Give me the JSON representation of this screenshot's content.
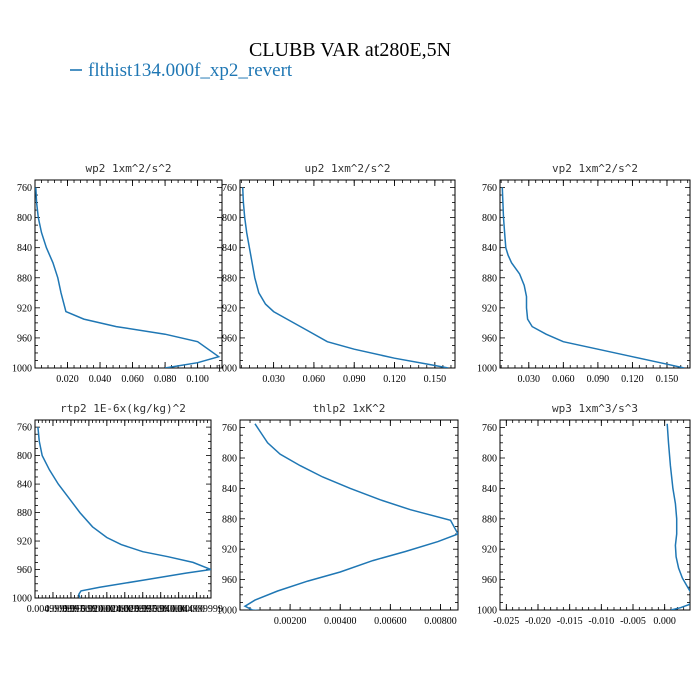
{
  "figure": {
    "title": "CLUBB VAR at280E,5N",
    "legend_label": "flthist134.000f_xp2_revert",
    "line_color": "#1f77b4"
  },
  "chart_data": [
    {
      "type": "line",
      "title": "wp2  1xm^2/s^2",
      "xlabel": "",
      "ylabel": "",
      "xlim": [
        0,
        0.115
      ],
      "ylim": [
        1000,
        750
      ],
      "xticks": [
        0.02,
        0.04,
        0.06,
        0.08,
        0.1
      ],
      "xtick_labels": [
        "0.020",
        "0.040",
        "0.060",
        "0.080",
        "0.100"
      ],
      "yticks": [
        760,
        800,
        840,
        880,
        920,
        960,
        1000
      ],
      "ytick_labels": [
        "760",
        "800",
        "840",
        "880",
        "920",
        "960",
        "1000"
      ],
      "series": [
        {
          "x": [
            0.0005,
            0.001,
            0.002,
            0.004,
            0.007,
            0.011,
            0.014,
            0.016,
            0.019,
            0.03,
            0.05,
            0.08,
            0.1,
            0.113,
            0.1,
            0.08
          ],
          "y": [
            760,
            780,
            800,
            820,
            840,
            860,
            880,
            900,
            925,
            935,
            945,
            955,
            965,
            985,
            993,
            1000
          ]
        }
      ]
    },
    {
      "type": "line",
      "title": "up2  1xm^2/s^2",
      "xlabel": "",
      "ylabel": "",
      "xlim": [
        0.005,
        0.165
      ],
      "ylim": [
        1000,
        750
      ],
      "xticks": [
        0.03,
        0.06,
        0.09,
        0.12,
        0.15
      ],
      "xtick_labels": [
        "0.030",
        "0.060",
        "0.090",
        "0.120",
        "0.150"
      ],
      "yticks": [
        760,
        800,
        840,
        880,
        920,
        960,
        1000
      ],
      "ytick_labels": [
        "760",
        "800",
        "840",
        "880",
        "920",
        "960",
        "1000"
      ],
      "series": [
        {
          "x": [
            0.007,
            0.0075,
            0.0085,
            0.01,
            0.012,
            0.014,
            0.016,
            0.019,
            0.024,
            0.03,
            0.04,
            0.055,
            0.07,
            0.09,
            0.12,
            0.145,
            0.16
          ],
          "y": [
            760,
            780,
            800,
            820,
            840,
            860,
            880,
            900,
            915,
            925,
            935,
            950,
            965,
            975,
            987,
            995,
            1000
          ]
        }
      ]
    },
    {
      "type": "line",
      "title": "vp2  1xm^2/s^2",
      "xlabel": "",
      "ylabel": "",
      "xlim": [
        0.005,
        0.17
      ],
      "ylim": [
        1000,
        750
      ],
      "xticks": [
        0.03,
        0.06,
        0.09,
        0.12,
        0.15
      ],
      "xtick_labels": [
        "0.030",
        "0.060",
        "0.090",
        "0.120",
        "0.150"
      ],
      "yticks": [
        760,
        800,
        840,
        880,
        920,
        960,
        1000
      ],
      "ytick_labels": [
        "760",
        "800",
        "840",
        "880",
        "920",
        "960",
        "1000"
      ],
      "series": [
        {
          "x": [
            0.007,
            0.0075,
            0.008,
            0.009,
            0.01,
            0.012,
            0.015,
            0.022,
            0.026,
            0.028,
            0.028,
            0.029,
            0.033,
            0.045,
            0.06,
            0.09,
            0.12,
            0.15,
            0.165
          ],
          "y": [
            760,
            780,
            800,
            820,
            840,
            850,
            860,
            875,
            890,
            905,
            920,
            935,
            945,
            955,
            965,
            975,
            985,
            995,
            1000
          ]
        }
      ]
    },
    {
      "type": "line",
      "title": "rtp2  1E-6x(kg/kg)^2",
      "xlabel": "",
      "ylabel": "",
      "xlim": [
        0,
        0.049
      ],
      "ylim": [
        1000,
        750
      ],
      "xticks": [
        0.005,
        0.01,
        0.015,
        0.02,
        0.025,
        0.03,
        0.035,
        0.04,
        0.045
      ],
      "xtick_labels": [
        "0.004999999",
        "0.009999999",
        "0.015000000",
        "0.020000000",
        "0.024999999",
        "0.029999999",
        "0.035000000",
        "0.040000000",
        "0.044999999"
      ],
      "yticks": [
        760,
        800,
        840,
        880,
        920,
        960,
        1000
      ],
      "ytick_labels": [
        "760",
        "800",
        "840",
        "880",
        "920",
        "960",
        "1000"
      ],
      "series": [
        {
          "x": [
            0.0008,
            0.0012,
            0.002,
            0.004,
            0.0065,
            0.0095,
            0.0125,
            0.016,
            0.02,
            0.024,
            0.03,
            0.037,
            0.044,
            0.049,
            0.042,
            0.03,
            0.018,
            0.0128,
            0.0122,
            0.0125
          ],
          "y": [
            760,
            780,
            800,
            820,
            840,
            860,
            880,
            900,
            915,
            925,
            935,
            942,
            950,
            960,
            965,
            975,
            985,
            990,
            995,
            1000
          ]
        }
      ]
    },
    {
      "type": "line",
      "title": "thlp2  1xK^2",
      "xlabel": "",
      "ylabel": "",
      "xlim": [
        0,
        0.0087
      ],
      "ylim": [
        1000,
        750
      ],
      "xticks": [
        0.002,
        0.004,
        0.006,
        0.008
      ],
      "xtick_labels": [
        "0.00200",
        "0.00400",
        "0.00600",
        "0.00800"
      ],
      "yticks": [
        760,
        800,
        840,
        880,
        920,
        960,
        1000
      ],
      "ytick_labels": [
        "760",
        "800",
        "840",
        "880",
        "920",
        "960",
        "1000"
      ],
      "series": [
        {
          "x": [
            0.0006,
            0.0008,
            0.0011,
            0.0016,
            0.0024,
            0.0033,
            0.0044,
            0.0056,
            0.0068,
            0.0084,
            0.0087,
            0.0079,
            0.0066,
            0.0053,
            0.004,
            0.0027,
            0.0015,
            0.0006,
            0.0002,
            0.0005,
            0.0012
          ],
          "y": [
            755,
            765,
            780,
            795,
            810,
            825,
            840,
            855,
            868,
            882,
            900,
            910,
            923,
            935,
            950,
            962,
            975,
            987,
            995,
            1000,
            1002
          ]
        }
      ]
    },
    {
      "type": "line",
      "title": "wp3  1xm^3/s^3",
      "xlabel": "",
      "ylabel": "",
      "xlim": [
        -0.026,
        0.004
      ],
      "ylim": [
        1000,
        750
      ],
      "xticks": [
        -0.025,
        -0.02,
        -0.015,
        -0.01,
        -0.005,
        0.0
      ],
      "xtick_labels": [
        "-0.025",
        "-0.020",
        "-0.015",
        "-0.010",
        "-0.005",
        "0.000"
      ],
      "yticks": [
        760,
        800,
        840,
        880,
        920,
        960,
        1000
      ],
      "ytick_labels": [
        "760",
        "800",
        "840",
        "880",
        "920",
        "960",
        "1000"
      ],
      "series": [
        {
          "x": [
            0.0004,
            0.0006,
            0.0009,
            0.0013,
            0.0017,
            0.0019,
            0.0019,
            0.0017,
            0.0018,
            0.0022,
            0.0028,
            0.0035,
            0.0042,
            0.0045,
            0.0038,
            0.0025,
            0.001
          ],
          "y": [
            755,
            780,
            810,
            840,
            860,
            880,
            900,
            915,
            930,
            945,
            958,
            968,
            978,
            988,
            993,
            997,
            1000
          ]
        }
      ]
    }
  ]
}
